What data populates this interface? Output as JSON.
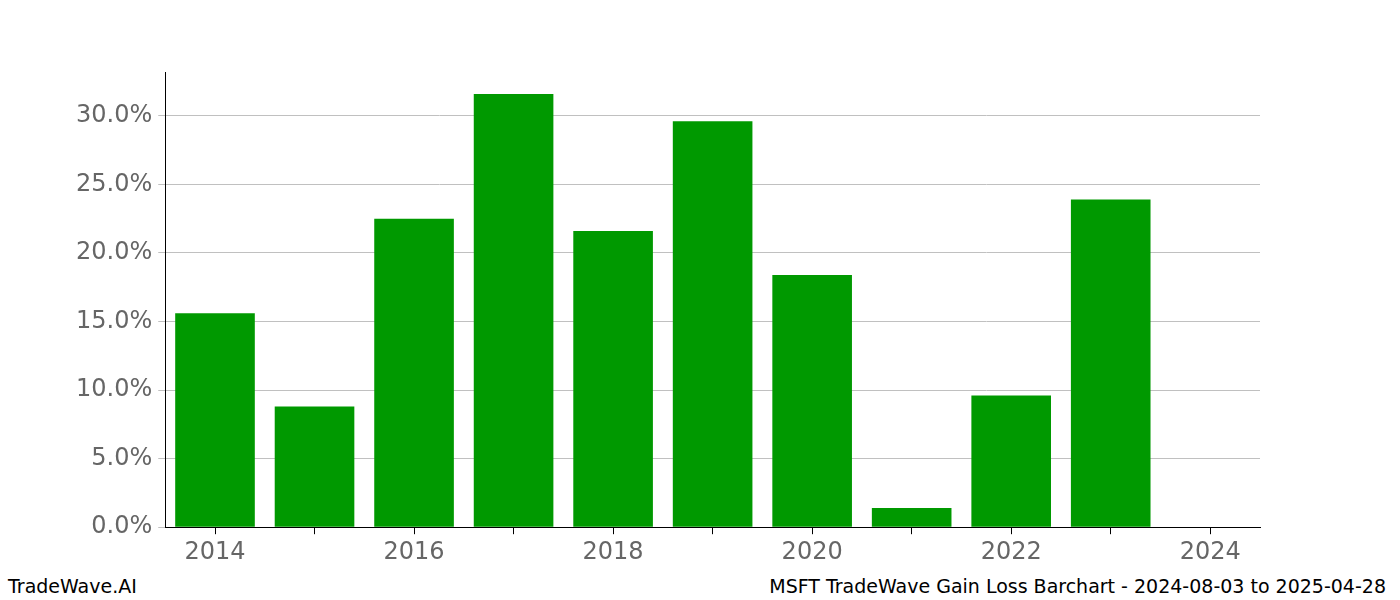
{
  "chart_data": {
    "type": "bar",
    "title": "MSFT TradeWave Gain Loss Barchart - 2024-08-03 to 2025-04-28",
    "annotations": [
      "TradeWave.AI"
    ],
    "categories": [
      "2014",
      null,
      "2016",
      null,
      "2018",
      null,
      "2020",
      null,
      "2022",
      null,
      "2024"
    ],
    "values": [
      15.6,
      8.8,
      22.5,
      31.6,
      21.6,
      29.6,
      18.4,
      1.4,
      9.6,
      23.9,
      null
    ],
    "color": "#009900",
    "ylim": [
      0,
      33.2
    ],
    "yticks": [
      {
        "value": 0,
        "label": "0.0%"
      },
      {
        "value": 5,
        "label": "5.0%"
      },
      {
        "value": 10,
        "label": "10.0%"
      },
      {
        "value": 15,
        "label": "15.0%"
      },
      {
        "value": 20,
        "label": "20.0%"
      },
      {
        "value": 25,
        "label": "25.0%"
      },
      {
        "value": 30,
        "label": "30.0%"
      }
    ],
    "grid": true
  }
}
